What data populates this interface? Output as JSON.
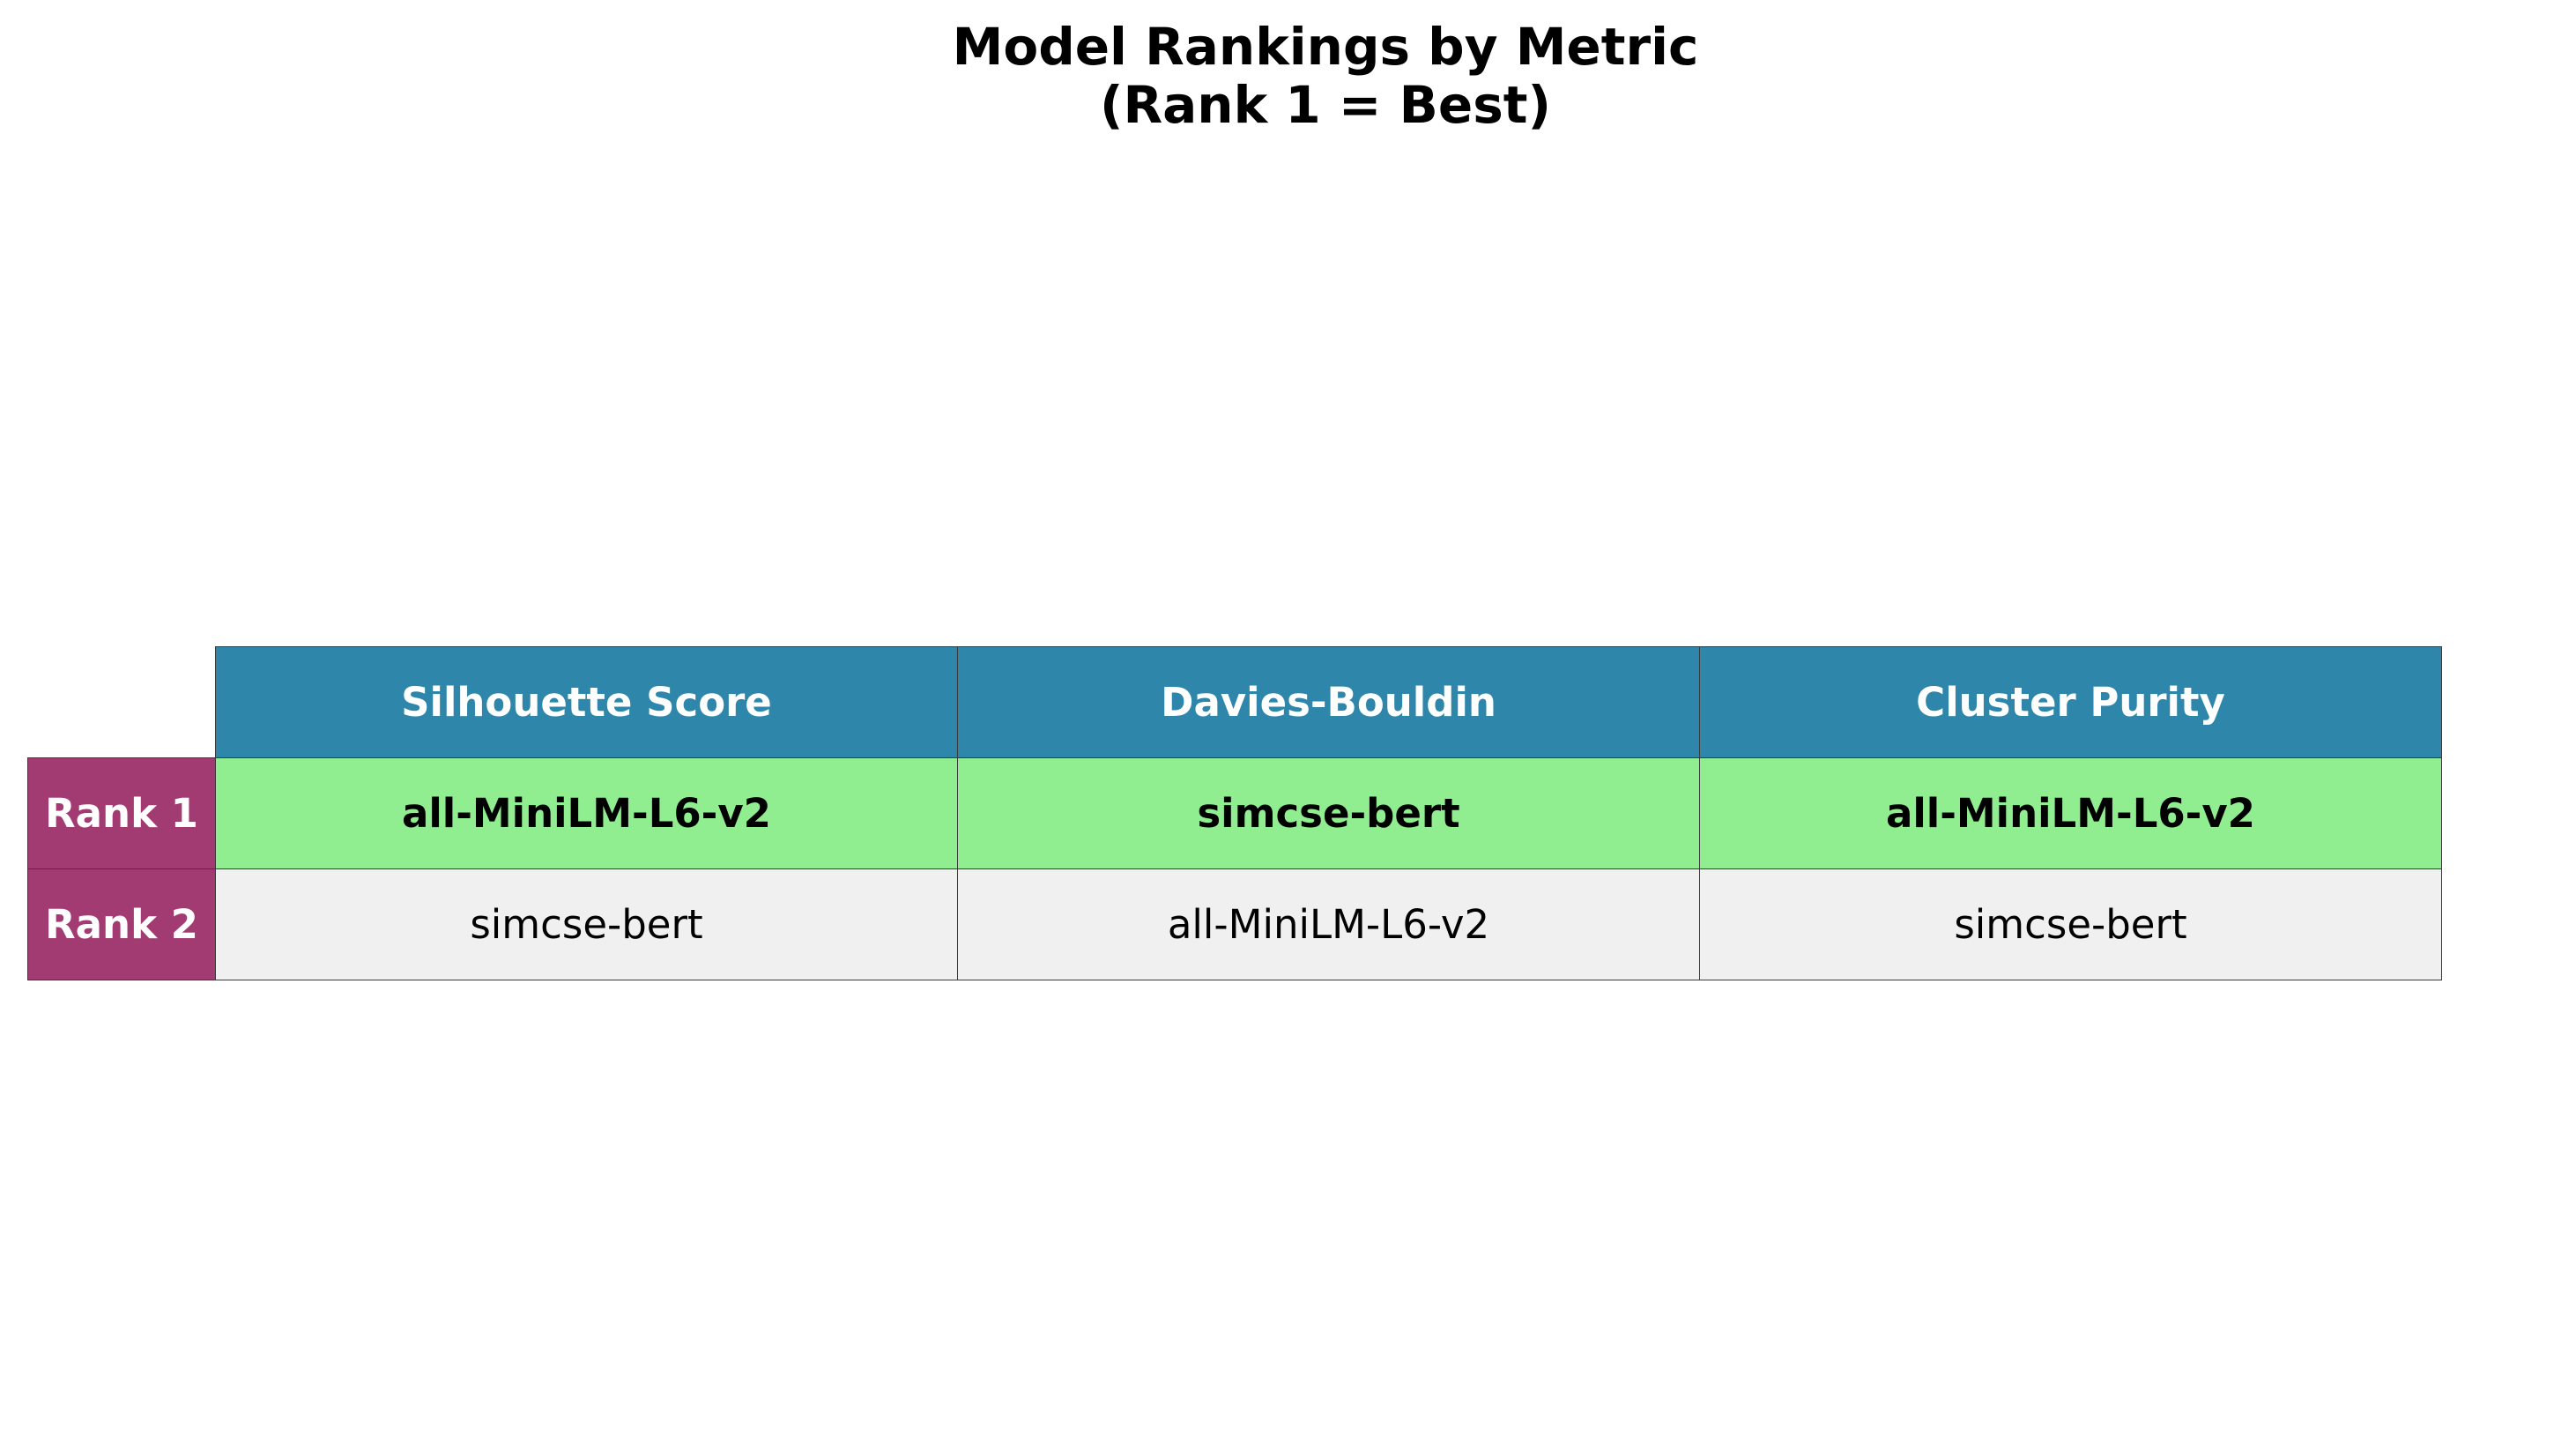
{
  "chart_data": {
    "type": "table",
    "title_lines": [
      "Model Rankings by Metric",
      "(Rank 1 = Best)"
    ],
    "columns": [
      "Silhouette Score",
      "Davies-Bouldin",
      "Cluster Purity"
    ],
    "rows": [
      {
        "label": "Rank 1",
        "cells": [
          "all-MiniLM-L6-v2",
          "simcse-bert",
          "all-MiniLM-L6-v2"
        ],
        "highlight": true
      },
      {
        "label": "Rank 2",
        "cells": [
          "simcse-bert",
          "all-MiniLM-L6-v2",
          "simcse-bert"
        ],
        "highlight": false
      }
    ],
    "colors": {
      "column_header_bg": "#2e86ab",
      "row_header_bg": "#a23b72",
      "best_row_bg": "#90ee90",
      "other_row_bg": "#f0f0f0",
      "header_text": "#ffffff",
      "cell_text": "#000000",
      "border": "#3a3a3a"
    }
  }
}
